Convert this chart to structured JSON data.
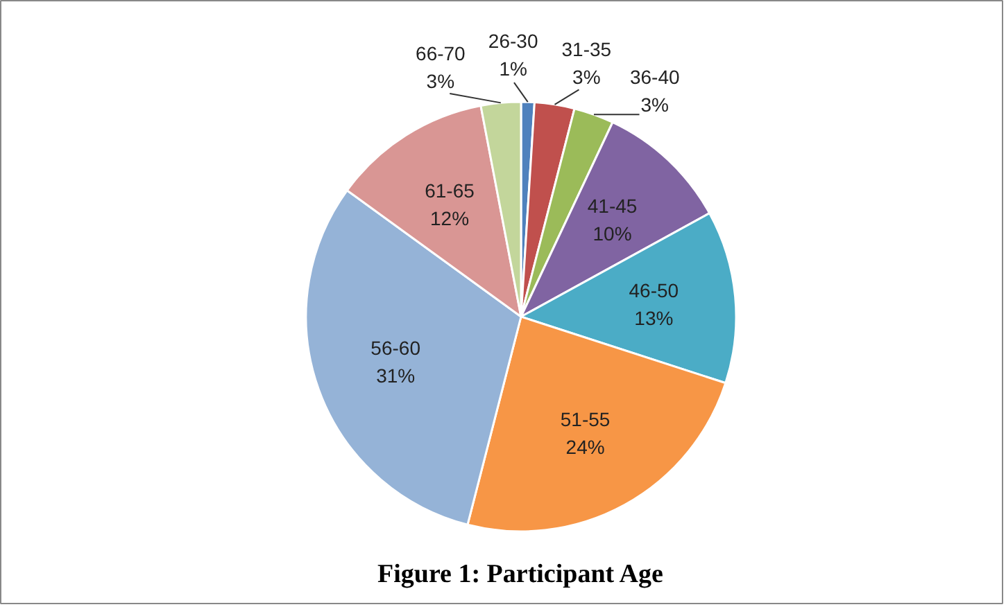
{
  "chart_data": {
    "type": "pie",
    "title": "Figure 1: Participant Age",
    "categories": [
      "26-30",
      "31-35",
      "36-40",
      "41-45",
      "46-50",
      "51-55",
      "56-60",
      "61-65",
      "66-70"
    ],
    "values": [
      1,
      3,
      3,
      10,
      13,
      24,
      31,
      12,
      3
    ],
    "value_labels": [
      "1%",
      "3%",
      "3%",
      "10%",
      "13%",
      "24%",
      "31%",
      "12%",
      "3%"
    ],
    "data_labels": true,
    "colors": [
      "#4f81bd",
      "#c0504d",
      "#9bbb59",
      "#8064a2",
      "#4bacc6",
      "#f79646",
      "#95b3d7",
      "#d99694",
      "#c3d69b"
    ]
  }
}
